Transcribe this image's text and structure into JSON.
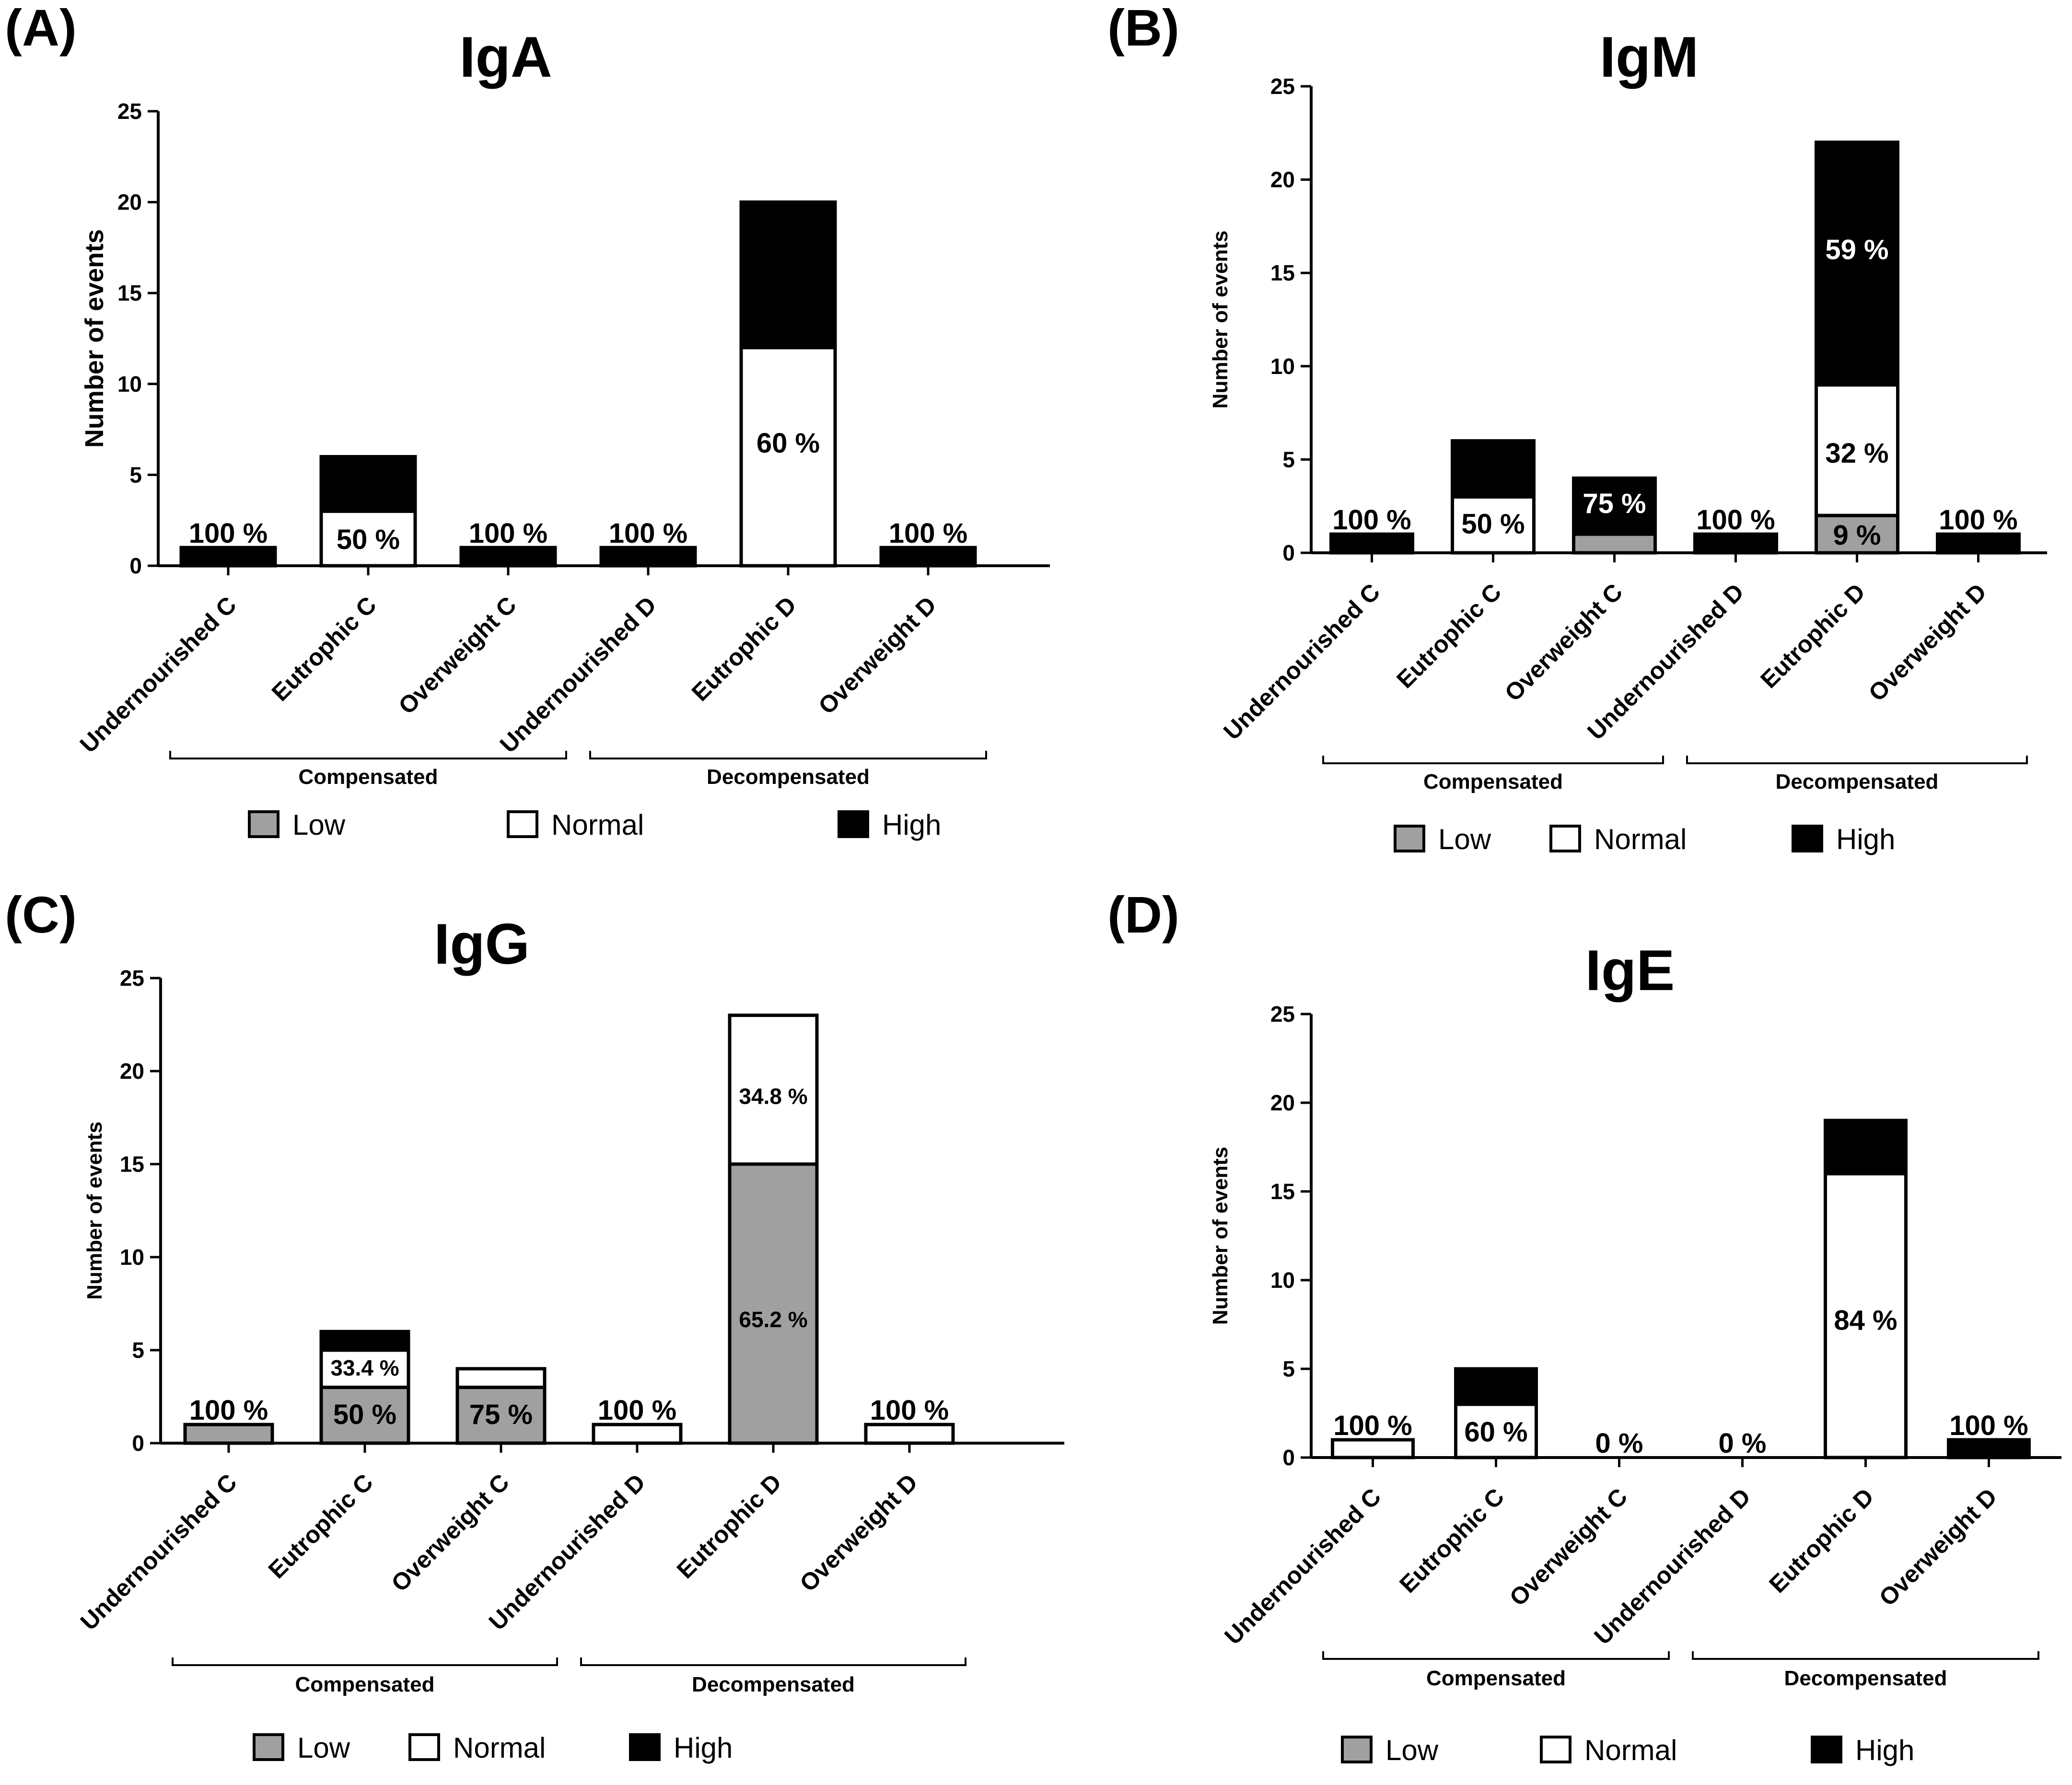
{
  "legend": {
    "low": {
      "label": "Low",
      "color": "#a0a0a0"
    },
    "normal": {
      "label": "Normal",
      "color": "#ffffff"
    },
    "high": {
      "label": "High",
      "color": "#000000"
    }
  },
  "chart_data": [
    {
      "panel": "(A)",
      "type": "bar",
      "stacked": true,
      "title": "IgA",
      "ylabel": "Number of events",
      "ylim": [
        0,
        25
      ],
      "yticks": [
        0,
        5,
        10,
        15,
        20,
        25
      ],
      "categories": [
        "Undernourished C",
        "Eutrophic C",
        "Overweight C",
        "Undernourished D",
        "Eutrophic D",
        "Overweight D"
      ],
      "groups": [
        {
          "label": "Compensated",
          "span": [
            0,
            2
          ]
        },
        {
          "label": "Decompensated",
          "span": [
            3,
            5
          ]
        }
      ],
      "series": [
        {
          "name": "Low",
          "values": [
            0,
            0,
            0,
            0,
            0,
            0
          ]
        },
        {
          "name": "Normal",
          "values": [
            0,
            3,
            0,
            0,
            12,
            0
          ]
        },
        {
          "name": "High",
          "values": [
            1,
            3,
            1,
            1,
            8,
            1
          ]
        }
      ],
      "annotations": [
        {
          "category": 0,
          "text": "100 %",
          "at": 1,
          "placement": "above"
        },
        {
          "category": 1,
          "text": "50 %",
          "at": 1.5,
          "placement": "inside",
          "color": "#000000"
        },
        {
          "category": 2,
          "text": "100 %",
          "at": 1,
          "placement": "above"
        },
        {
          "category": 3,
          "text": "100 %",
          "at": 1,
          "placement": "above"
        },
        {
          "category": 4,
          "text": "60 %",
          "at": 6.8,
          "placement": "inside",
          "color": "#000000"
        },
        {
          "category": 5,
          "text": "100 %",
          "at": 1,
          "placement": "above"
        }
      ]
    },
    {
      "panel": "(B)",
      "type": "bar",
      "stacked": true,
      "title": "IgM",
      "ylabel": "Number of events",
      "ylim": [
        0,
        25
      ],
      "yticks": [
        0,
        5,
        10,
        15,
        20,
        25
      ],
      "categories": [
        "Undernourished C",
        "Eutrophic C",
        "Overweight C",
        "Undernourished D",
        "Eutrophic D",
        "Overweight D"
      ],
      "groups": [
        {
          "label": "Compensated",
          "span": [
            0,
            2
          ]
        },
        {
          "label": "Decompensated",
          "span": [
            3,
            5
          ]
        }
      ],
      "series": [
        {
          "name": "Low",
          "values": [
            0,
            0,
            1,
            0,
            2,
            0
          ]
        },
        {
          "name": "Normal",
          "values": [
            0,
            3,
            0,
            0,
            7,
            0
          ]
        },
        {
          "name": "High",
          "values": [
            1,
            3,
            3,
            1,
            13,
            1
          ]
        }
      ],
      "annotations": [
        {
          "category": 0,
          "text": "100 %",
          "at": 1,
          "placement": "above"
        },
        {
          "category": 1,
          "text": "50 %",
          "at": 1.6,
          "placement": "inside",
          "color": "#000000"
        },
        {
          "category": 2,
          "text": "75 %",
          "at": 2.7,
          "placement": "inside",
          "color": "#ffffff"
        },
        {
          "category": 3,
          "text": "100 %",
          "at": 1,
          "placement": "above"
        },
        {
          "category": 4,
          "text": "59 %",
          "at": 16.3,
          "placement": "inside",
          "color": "#ffffff"
        },
        {
          "category": 4,
          "text": "32 %",
          "at": 5.4,
          "placement": "inside",
          "color": "#000000"
        },
        {
          "category": 4,
          "text": "9 %",
          "at": 1.0,
          "placement": "inside",
          "color": "#000000"
        },
        {
          "category": 5,
          "text": "100 %",
          "at": 1,
          "placement": "above"
        }
      ]
    },
    {
      "panel": "(C)",
      "type": "bar",
      "stacked": true,
      "title": "IgG",
      "ylabel": "Number of events",
      "ylim": [
        0,
        25
      ],
      "yticks": [
        0,
        5,
        10,
        15,
        20,
        25
      ],
      "categories": [
        "Undernourished C",
        "Eutrophic C",
        "Overweight C",
        "Undernourished D",
        "Eutrophic D",
        "Overweight D"
      ],
      "groups": [
        {
          "label": "Compensated",
          "span": [
            0,
            2
          ]
        },
        {
          "label": "Decompensated",
          "span": [
            3,
            5
          ]
        }
      ],
      "series": [
        {
          "name": "Low",
          "values": [
            1,
            3,
            3,
            0,
            15,
            0
          ]
        },
        {
          "name": "Normal",
          "values": [
            0,
            2,
            1,
            1,
            8,
            1
          ]
        },
        {
          "name": "High",
          "values": [
            0,
            1,
            0,
            0,
            0,
            0
          ]
        }
      ],
      "annotations": [
        {
          "category": 0,
          "text": "100 %",
          "at": 1,
          "placement": "above"
        },
        {
          "category": 1,
          "text": "33.4 %",
          "at": 4.2,
          "placement": "inside",
          "color": "#000000",
          "small": true
        },
        {
          "category": 1,
          "text": "50 %",
          "at": 1.6,
          "placement": "inside",
          "color": "#000000"
        },
        {
          "category": 2,
          "text": "75 %",
          "at": 1.6,
          "placement": "inside",
          "color": "#000000"
        },
        {
          "category": 3,
          "text": "100 %",
          "at": 1,
          "placement": "above"
        },
        {
          "category": 4,
          "text": "34.8 %",
          "at": 18.8,
          "placement": "inside",
          "color": "#000000",
          "small": true
        },
        {
          "category": 4,
          "text": "65.2 %",
          "at": 6.8,
          "placement": "inside",
          "color": "#000000",
          "small": true
        },
        {
          "category": 5,
          "text": "100 %",
          "at": 1,
          "placement": "above"
        }
      ]
    },
    {
      "panel": "(D)",
      "type": "bar",
      "stacked": true,
      "title": "IgE",
      "ylabel": "Number of events",
      "ylim": [
        0,
        25
      ],
      "yticks": [
        0,
        5,
        10,
        15,
        20,
        25
      ],
      "categories": [
        "Undernourished C",
        "Eutrophic C",
        "Overweight C",
        "Undernourished D",
        "Eutrophic D",
        "Overweight D"
      ],
      "groups": [
        {
          "label": "Compensated",
          "span": [
            0,
            2
          ]
        },
        {
          "label": "Decompensated",
          "span": [
            3,
            5
          ]
        }
      ],
      "series": [
        {
          "name": "Low",
          "values": [
            0,
            0,
            0,
            0,
            0,
            0
          ]
        },
        {
          "name": "Normal",
          "values": [
            1,
            3,
            0,
            0,
            16,
            0
          ]
        },
        {
          "name": "High",
          "values": [
            0,
            2,
            0,
            0,
            3,
            1
          ]
        }
      ],
      "annotations": [
        {
          "category": 0,
          "text": "100 %",
          "at": 1,
          "placement": "above"
        },
        {
          "category": 1,
          "text": "60 %",
          "at": 1.5,
          "placement": "inside",
          "color": "#000000"
        },
        {
          "category": 2,
          "text": "0 %",
          "at": 0,
          "placement": "above"
        },
        {
          "category": 3,
          "text": "0 %",
          "at": 0,
          "placement": "above"
        },
        {
          "category": 4,
          "text": "84 %",
          "at": 7.8,
          "placement": "inside",
          "color": "#000000"
        },
        {
          "category": 5,
          "text": "100 %",
          "at": 1,
          "placement": "above"
        }
      ]
    }
  ]
}
